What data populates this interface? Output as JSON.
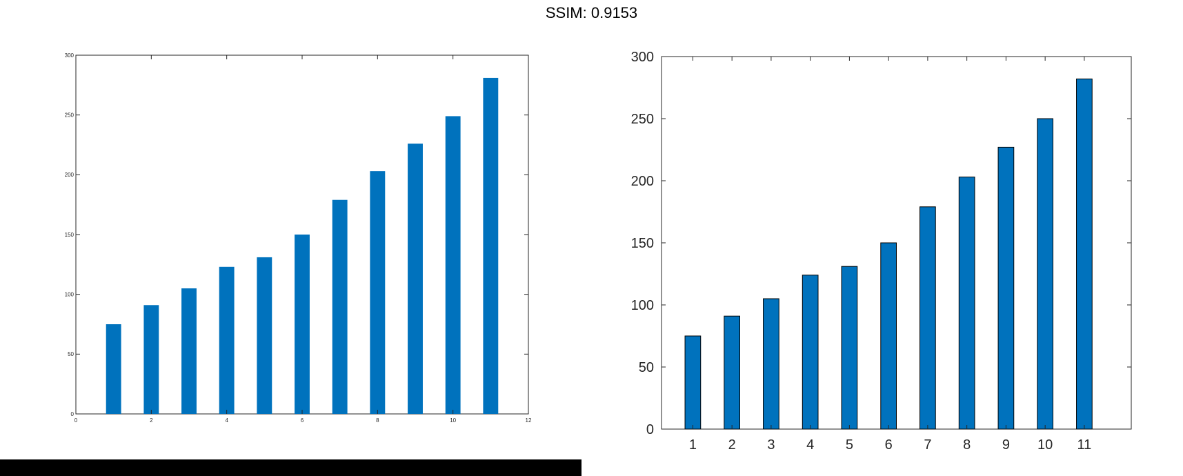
{
  "figure_title": "SSIM: 0.9153",
  "colors": {
    "bar_fill": "#0072BD",
    "bar_edge": "#000000",
    "axis": "#262626",
    "background": "#ffffff"
  },
  "chart_data": [
    {
      "type": "bar",
      "x": [
        1,
        2,
        3,
        4,
        5,
        6,
        7,
        8,
        9,
        10,
        11
      ],
      "values": [
        75,
        91,
        105,
        123,
        131,
        150,
        179,
        203,
        226,
        249,
        281
      ],
      "xlim": [
        0,
        12
      ],
      "ylim": [
        0,
        300
      ],
      "xticks": [
        0,
        2,
        4,
        6,
        8,
        10,
        12
      ],
      "yticks": [
        0,
        50,
        100,
        150,
        200,
        250,
        300
      ],
      "title": "",
      "xlabel": "",
      "ylabel": "",
      "grid": false
    },
    {
      "type": "bar",
      "x": [
        1,
        2,
        3,
        4,
        5,
        6,
        7,
        8,
        9,
        10,
        11
      ],
      "values": [
        75,
        91,
        105,
        124,
        131,
        150,
        179,
        203,
        227,
        250,
        282
      ],
      "xlim": [
        0.2,
        12.2
      ],
      "ylim": [
        0,
        300
      ],
      "xticks": [
        1,
        2,
        3,
        4,
        5,
        6,
        7,
        8,
        9,
        10,
        11
      ],
      "yticks": [
        0,
        50,
        100,
        150,
        200,
        250,
        300
      ],
      "title": "",
      "xlabel": "",
      "ylabel": "",
      "grid": false
    }
  ]
}
